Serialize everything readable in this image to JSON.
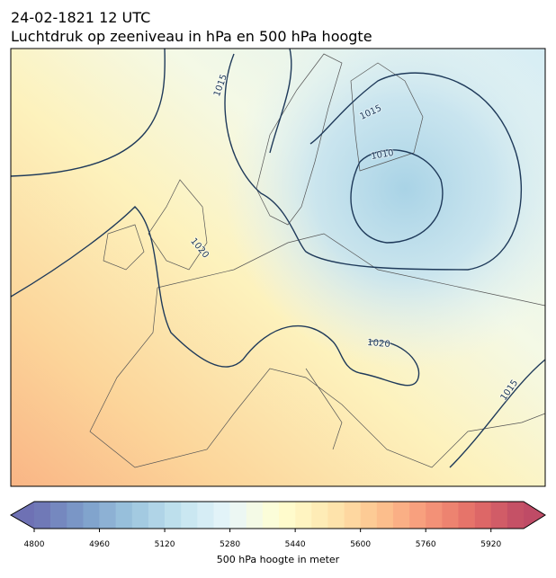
{
  "header": {
    "date": "24-02-1821 12 UTC",
    "title": "Luchtdruk op zeeniveau in hPa en 500 hPa hoogte"
  },
  "map": {
    "isobar_labels": [
      1015,
      1015,
      1010,
      1020,
      1020,
      1015
    ]
  },
  "colorbar": {
    "label": "500 hPa hoogte in meter",
    "lim": [
      4800,
      6000
    ],
    "step": 40,
    "ticks": [
      4800,
      4960,
      5120,
      5280,
      5440,
      5600,
      5760,
      5920
    ],
    "colormap": "RdYlBu_r"
  }
}
